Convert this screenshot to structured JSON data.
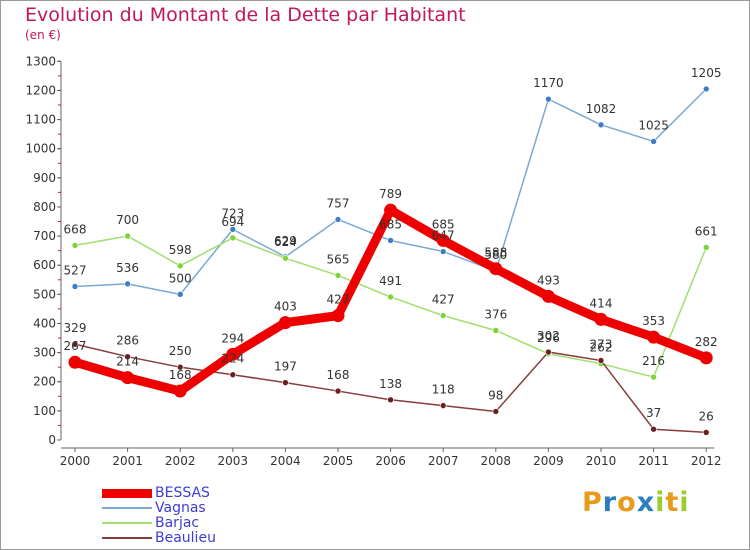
{
  "title": "Evolution du Montant de la Dette par Habitant",
  "subtitle": "(en €)",
  "brand": {
    "text": "Proxiti",
    "letters": [
      {
        "ch": "P",
        "color": "#e89a1a"
      },
      {
        "ch": "r",
        "color": "#2a7fc1"
      },
      {
        "ch": "o",
        "color": "#e89a1a"
      },
      {
        "ch": "x",
        "color": "#2a7fc1"
      },
      {
        "ch": "i",
        "color": "#9acd32"
      },
      {
        "ch": "t",
        "color": "#e89a1a"
      },
      {
        "ch": "i",
        "color": "#9acd32"
      }
    ]
  },
  "chart_data": {
    "type": "line",
    "title": "Evolution du Montant de la Dette par Habitant",
    "subtitle": "(en €)",
    "xlabel": "",
    "ylabel": "",
    "ylim": [
      0,
      1300
    ],
    "y_ticks": [
      0,
      100,
      200,
      300,
      400,
      500,
      600,
      700,
      800,
      900,
      1000,
      1100,
      1200,
      1300
    ],
    "x": [
      "2000",
      "2001",
      "2002",
      "2003",
      "2004",
      "2005",
      "2006",
      "2007",
      "2008",
      "2009",
      "2010",
      "2011",
      "2012"
    ],
    "grid": false,
    "legend_position": "bottom-left",
    "series": [
      {
        "name": "BESSAS",
        "color": "#ee0000",
        "width": 9,
        "marker_color": "#ee0000",
        "values": [
          267,
          214,
          168,
          294,
          403,
          427,
          789,
          685,
          588,
          493,
          414,
          353,
          282
        ]
      },
      {
        "name": "Vagnas",
        "color": "#7aa9d4",
        "width": 1.5,
        "marker_color": "#3d7fc4",
        "values": [
          527,
          536,
          500,
          723,
          629,
          757,
          685,
          647,
          580,
          1170,
          1082,
          1025,
          1205
        ]
      },
      {
        "name": "Barjac",
        "color": "#9fdf70",
        "width": 1.5,
        "marker_color": "#7ed23a",
        "values": [
          668,
          700,
          598,
          694,
          624,
          565,
          491,
          427,
          376,
          296,
          262,
          216,
          661
        ]
      },
      {
        "name": "Beaulieu",
        "color": "#8a3c3c",
        "width": 1.5,
        "marker_color": "#6b1f1f",
        "values": [
          329,
          286,
          250,
          224,
          197,
          168,
          138,
          118,
          98,
          302,
          273,
          37,
          26
        ]
      }
    ]
  }
}
